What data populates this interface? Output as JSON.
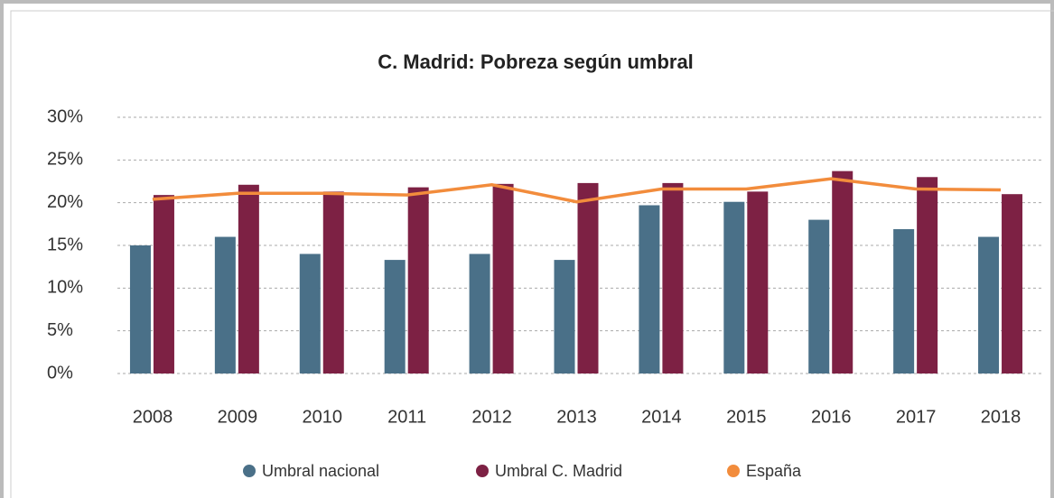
{
  "chart_data": {
    "type": "bar-line",
    "title": "C. Madrid: Pobreza según umbral",
    "categories": [
      "2008",
      "2009",
      "2010",
      "2011",
      "2012",
      "2013",
      "2014",
      "2015",
      "2016",
      "2017",
      "2018"
    ],
    "series": [
      {
        "name": "Umbral nacional",
        "type": "bar",
        "color": "#4a7088",
        "values": [
          15.0,
          16.0,
          14.0,
          13.3,
          14.0,
          13.3,
          19.7,
          20.1,
          18.0,
          16.9,
          16.0
        ]
      },
      {
        "name": "Umbral C. Madrid",
        "type": "bar",
        "color": "#7d2144",
        "values": [
          20.9,
          22.1,
          21.3,
          21.8,
          22.2,
          22.3,
          22.3,
          21.3,
          23.7,
          23.0,
          21.0
        ]
      },
      {
        "name": "España",
        "type": "line",
        "color": "#f28c3c",
        "values": [
          20.4,
          21.1,
          21.1,
          20.9,
          22.1,
          20.1,
          21.6,
          21.6,
          22.8,
          21.6,
          21.5
        ]
      }
    ],
    "ylim": [
      0,
      30
    ],
    "yticks": [
      {
        "value": 0,
        "label": "0%"
      },
      {
        "value": 5,
        "label": "5%"
      },
      {
        "value": 10,
        "label": "10%"
      },
      {
        "value": 15,
        "label": "15%"
      },
      {
        "value": 20,
        "label": "20%"
      },
      {
        "value": 25,
        "label": "25%"
      },
      {
        "value": 30,
        "label": "30%"
      }
    ],
    "grid": true,
    "legend": "bottom"
  }
}
